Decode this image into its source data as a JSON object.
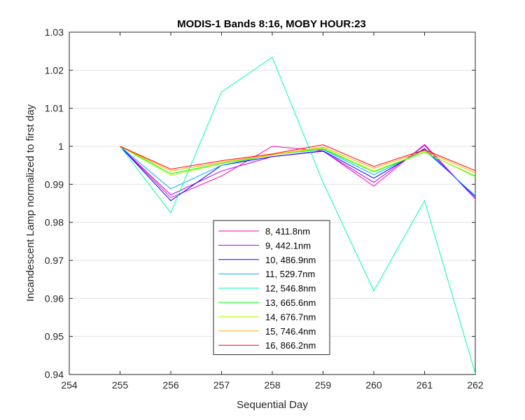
{
  "chart_data": {
    "type": "line",
    "title": "MODIS-1 Bands 8:16, MOBY HOUR:23",
    "xlabel": "Sequential Day",
    "ylabel": "Incandescent Lamp normalized to first day",
    "xlim": [
      254,
      262
    ],
    "ylim": [
      0.94,
      1.03
    ],
    "xticks": [
      "254",
      "255",
      "256",
      "257",
      "258",
      "259",
      "260",
      "261",
      "262"
    ],
    "yticks": [
      "0.94",
      "0.95",
      "0.96",
      "0.97",
      "0.98",
      "0.99",
      "1",
      "1.01",
      "1.02",
      "1.03"
    ],
    "grid": "y",
    "legend_position": "bottom-center",
    "x": [
      255,
      256,
      257,
      258,
      259,
      260,
      261,
      262
    ],
    "series": [
      {
        "name": "8, 411.8nm",
        "color": "#ff00aa",
        "values": [
          1.0,
          0.9865,
          0.9922,
          1.0,
          0.9988,
          0.9895,
          1.0005,
          0.9862
        ]
      },
      {
        "name": "9, 442.1nm",
        "color": "#aa00ff",
        "values": [
          1.0,
          0.9872,
          0.9935,
          0.9973,
          0.9987,
          0.9905,
          1.0002,
          0.9862
        ]
      },
      {
        "name": "10, 486.9nm",
        "color": "#0000ff",
        "values": [
          1.0,
          0.9857,
          0.995,
          0.9973,
          0.9988,
          0.9916,
          0.9994,
          0.9867
        ]
      },
      {
        "name": "11, 529.7nm",
        "color": "#00aaff",
        "values": [
          1.0,
          0.9888,
          0.995,
          0.9978,
          0.9992,
          0.9925,
          0.999,
          0.987
        ]
      },
      {
        "name": "12, 546.8nm",
        "color": "#00ffaa",
        "values": [
          1.0,
          0.9825,
          1.0143,
          1.0234,
          0.9905,
          0.962,
          0.9857,
          0.9403
        ]
      },
      {
        "name": "13, 665.6nm",
        "color": "#00ff00",
        "values": [
          1.0,
          0.9928,
          0.9955,
          0.9978,
          0.9993,
          0.9933,
          0.9984,
          0.9922
        ]
      },
      {
        "name": "14, 676.7nm",
        "color": "#aaff00",
        "values": [
          1.0,
          0.9924,
          0.9954,
          0.9977,
          0.9996,
          0.9935,
          0.9985,
          0.992
        ]
      },
      {
        "name": "15, 746.4nm",
        "color": "#ffaa00",
        "values": [
          1.0,
          0.9935,
          0.9958,
          0.9978,
          0.9998,
          0.9942,
          0.9988,
          0.993
        ]
      },
      {
        "name": "16, 866.2nm",
        "color": "#ff0000",
        "values": [
          1.0,
          0.994,
          0.9962,
          0.998,
          1.0004,
          0.9947,
          0.9991,
          0.9936
        ]
      }
    ]
  }
}
